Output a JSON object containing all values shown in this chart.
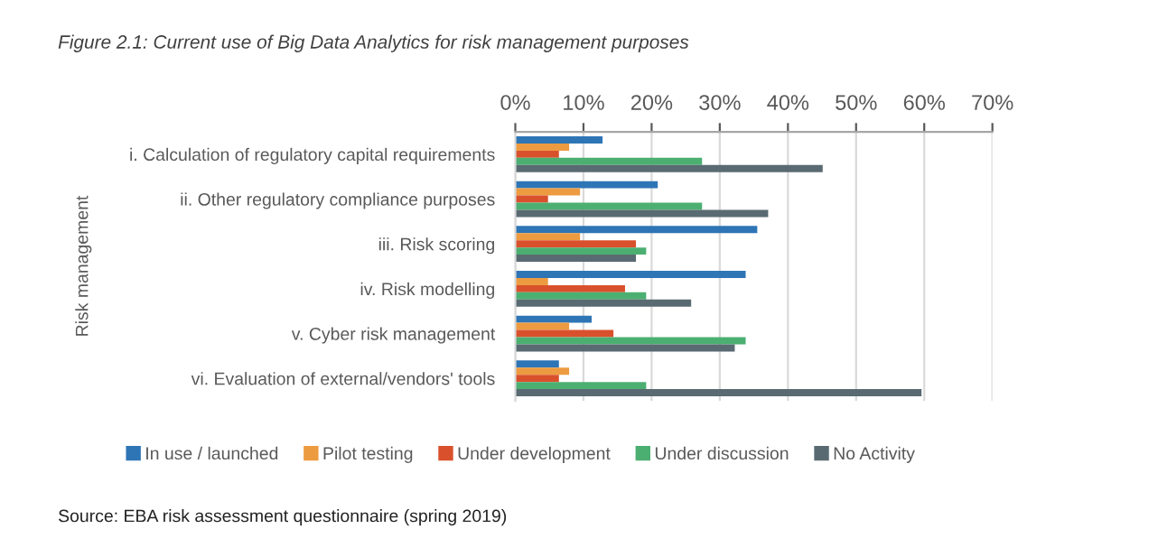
{
  "chart_data": {
    "type": "bar",
    "orientation": "horizontal",
    "title": "Figure 2.1: Current use of Big Data Analytics for risk management purposes",
    "ylabel": "Risk management",
    "categories": [
      "i. Calculation of regulatory capital requirements",
      "ii. Other regulatory compliance purposes",
      "iii. Risk scoring",
      "iv. Risk modelling",
      "v. Cyber risk management",
      "vi. Evaluation of external/vendors' tools"
    ],
    "series": [
      {
        "name": "In use / launched",
        "color": "#2e75b6",
        "values": [
          12.8,
          20.9,
          35.5,
          33.8,
          11.2,
          6.4
        ]
      },
      {
        "name": "Pilot testing",
        "color": "#ed9b40",
        "values": [
          7.9,
          9.5,
          9.5,
          4.8,
          7.9,
          7.9
        ]
      },
      {
        "name": "Under development",
        "color": "#d9512c",
        "values": [
          6.4,
          4.8,
          17.7,
          16.1,
          14.4,
          6.4
        ]
      },
      {
        "name": "Under discussion",
        "color": "#4caf72",
        "values": [
          27.4,
          27.4,
          19.2,
          19.2,
          33.8,
          19.2
        ]
      },
      {
        "name": "No Activity",
        "color": "#596a72",
        "values": [
          45.1,
          37.1,
          17.7,
          25.8,
          32.2,
          59.6
        ]
      }
    ],
    "xlim": [
      0,
      70
    ],
    "xticks": [
      {
        "value": 0,
        "label": "0%"
      },
      {
        "value": 10,
        "label": "10%"
      },
      {
        "value": 20,
        "label": "20%"
      },
      {
        "value": 30,
        "label": "30%"
      },
      {
        "value": 40,
        "label": "40%"
      },
      {
        "value": 50,
        "label": "50%"
      },
      {
        "value": 60,
        "label": "60%"
      },
      {
        "value": 70,
        "label": "70%"
      }
    ],
    "grid": "x",
    "legend": "bottom",
    "annotations": [
      "Source: EBA risk assessment questionnaire (spring 2019)"
    ]
  }
}
